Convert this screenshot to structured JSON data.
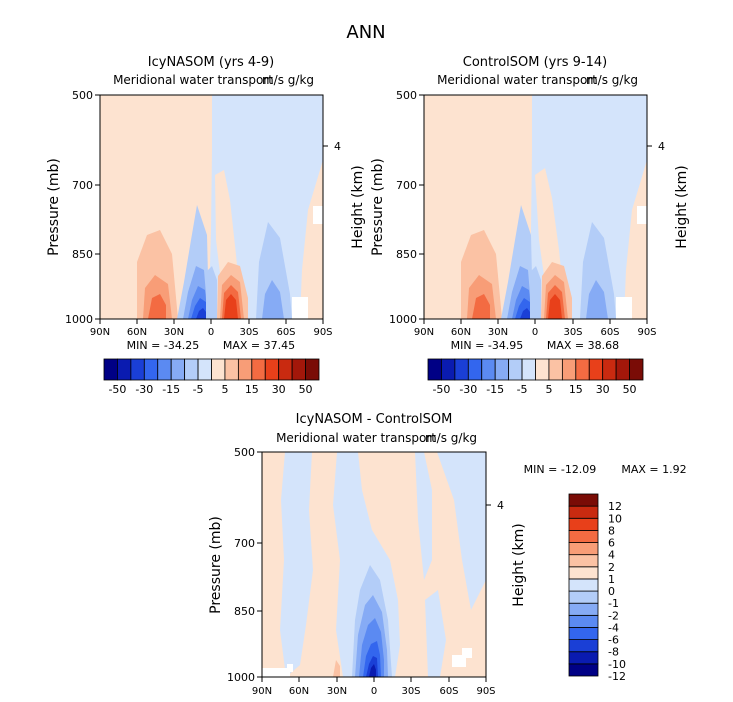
{
  "figure": {
    "title": "ANN"
  },
  "colors": {
    "levels_main": [
      "#000085",
      "#0a1bb0",
      "#1a3fd6",
      "#3366ee",
      "#5b8af2",
      "#86abf5",
      "#b3cdf8",
      "#d4e4fb",
      "#fde3d0",
      "#fbc2a4",
      "#f89d77",
      "#f36b42",
      "#e8401a",
      "#c92a10",
      "#a3170a",
      "#7a0c06"
    ],
    "levels_diff": [
      "#000085",
      "#0a1bb0",
      "#1a3fd6",
      "#3366ee",
      "#5b8af2",
      "#86abf5",
      "#b3cdf8",
      "#d4e4fb",
      "#fde3d0",
      "#fbc2a4",
      "#f89d77",
      "#f36b42",
      "#e8401a",
      "#c92a10",
      "#7a0c06"
    ]
  },
  "chart_data": [
    {
      "type": "heatmap",
      "title": "IcyNASOM (yrs 4-9)",
      "subtitle": "Meridional water transport",
      "units": "m/s g/kg",
      "ylabel": "Pressure (mb)",
      "ylabel_right": "Height (km)",
      "y_ticks": [
        "500",
        "700",
        "850",
        "1000"
      ],
      "y_right_ticks": [
        "4"
      ],
      "x_ticks": [
        "90N",
        "60N",
        "30N",
        "0",
        "30S",
        "60S",
        "90S"
      ],
      "xlim": [
        90,
        -90
      ],
      "ylim": [
        1000,
        500
      ],
      "stats": {
        "min_label": "MIN = -34.25",
        "max_label": "MAX = 37.45",
        "min": -34.25,
        "max": 37.45
      },
      "colorbar": {
        "orientation": "horizontal",
        "labels": [
          "-50",
          "-30",
          "-15",
          "-5",
          "5",
          "15",
          "30",
          "50"
        ]
      }
    },
    {
      "type": "heatmap",
      "title": "ControlSOM (yrs 9-14)",
      "subtitle": "Meridional water transport",
      "units": "m/s g/kg",
      "ylabel": "Pressure (mb)",
      "ylabel_right": "Height (km)",
      "y_ticks": [
        "500",
        "700",
        "850",
        "1000"
      ],
      "y_right_ticks": [
        "4"
      ],
      "x_ticks": [
        "90N",
        "60N",
        "30N",
        "0",
        "30S",
        "60S",
        "90S"
      ],
      "xlim": [
        90,
        -90
      ],
      "ylim": [
        1000,
        500
      ],
      "stats": {
        "min_label": "MIN = -34.95",
        "max_label": "MAX = 38.68",
        "min": -34.95,
        "max": 38.68
      },
      "colorbar": {
        "orientation": "horizontal",
        "labels": [
          "-50",
          "-30",
          "-15",
          "-5",
          "5",
          "15",
          "30",
          "50"
        ]
      }
    },
    {
      "type": "heatmap",
      "title": "IcyNASOM - ControlSOM",
      "subtitle": "Meridional water transport",
      "units": "m/s g/kg",
      "ylabel": "Pressure (mb)",
      "ylabel_right": "Height (km)",
      "y_ticks": [
        "500",
        "700",
        "850",
        "1000"
      ],
      "y_right_ticks": [
        "4"
      ],
      "x_ticks": [
        "90N",
        "60N",
        "30N",
        "0",
        "30S",
        "60S",
        "90S"
      ],
      "xlim": [
        90,
        -90
      ],
      "ylim": [
        1000,
        500
      ],
      "stats": {
        "min_label": "MIN = -12.09",
        "max_label": "MAX =   1.92",
        "min": -12.09,
        "max": 1.92
      },
      "colorbar": {
        "orientation": "vertical",
        "labels": [
          "12",
          "10",
          "8",
          "6",
          "4",
          "2",
          "1",
          "0",
          "-1",
          "-2",
          "-4",
          "-6",
          "-8",
          "-10",
          "-12"
        ]
      }
    }
  ]
}
